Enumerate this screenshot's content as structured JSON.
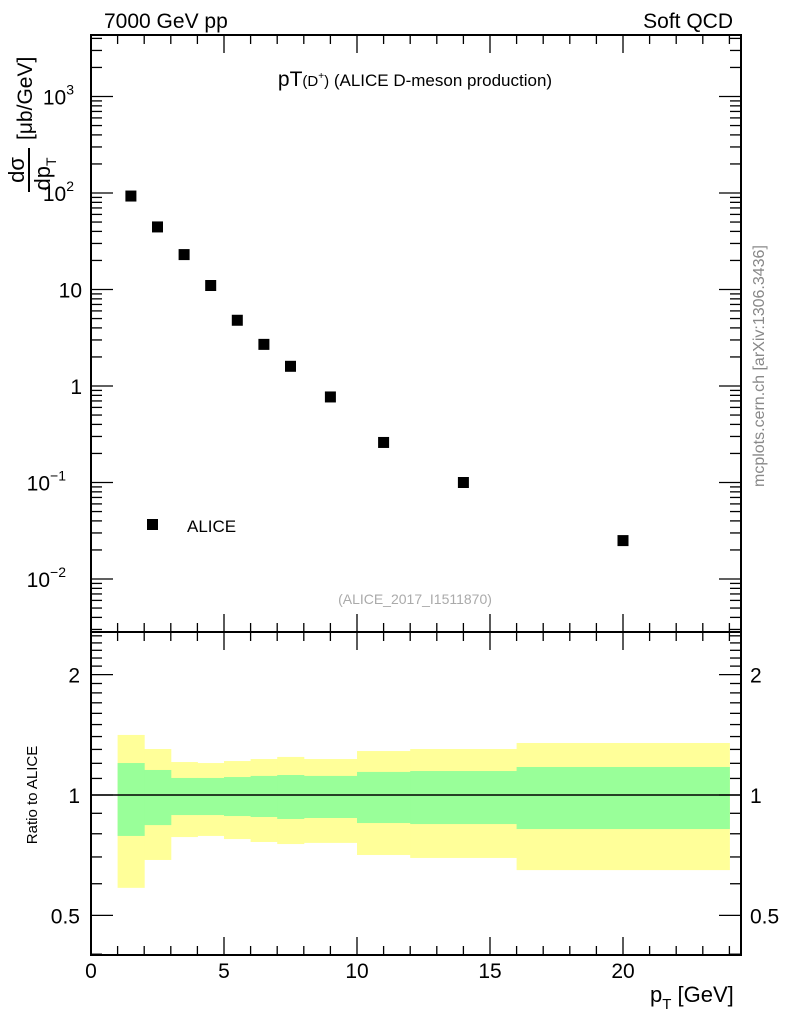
{
  "header": {
    "left": "7000 GeV pp",
    "right": "Soft QCD"
  },
  "watermark": "mcplots.cern.ch [arXiv:1306.3436]",
  "chart_data": [
    {
      "type": "scatter",
      "title_main": "pT",
      "title_sub": "(D",
      "title_sup": "+",
      "title_close": ")",
      "title_rest": " (ALICE D-meson production)",
      "ylabel_num": "dσ",
      "ylabel_den": "dp",
      "ylabel_den_sub": "T",
      "ylabel_unit": "[μb/GeV]",
      "yscale": "log",
      "ylim": [
        0.00275,
        4300
      ],
      "xlim": [
        0,
        24.4
      ],
      "y_ticks": [
        {
          "value": 0.01,
          "base": "10",
          "exp": "−2"
        },
        {
          "value": 0.1,
          "base": "10",
          "exp": "−1"
        },
        {
          "value": 1,
          "base": "1",
          "exp": ""
        },
        {
          "value": 10,
          "base": "10",
          "exp": ""
        },
        {
          "value": 100,
          "base": "10",
          "exp": "2"
        },
        {
          "value": 1000,
          "base": "10",
          "exp": "3"
        }
      ],
      "series": [
        {
          "name": "ALICE",
          "x": [
            1.5,
            2.5,
            3.5,
            4.5,
            5.5,
            6.5,
            7.5,
            9,
            11,
            14,
            20
          ],
          "y": [
            93,
            44.5,
            23,
            11,
            4.8,
            2.7,
            1.6,
            0.77,
            0.26,
            0.1,
            0.025
          ],
          "marker": "square",
          "color": "#000000"
        }
      ],
      "legend": {
        "label": "ALICE",
        "placement": "bottom-left"
      },
      "reference": "(ALICE_2017_I1511870)"
    },
    {
      "type": "area",
      "ylabel": "Ratio to ALICE",
      "xlabel_main": "p",
      "xlabel_sub": "T",
      "xlabel_unit": " [GeV]",
      "yscale": "log",
      "ylim": [
        0.4,
        2.56
      ],
      "xlim": [
        0,
        24.4
      ],
      "x_ticks": [
        0,
        5,
        10,
        15,
        20
      ],
      "y_ticks": [
        {
          "value": 0.5,
          "label": "0.5"
        },
        {
          "value": 1,
          "label": "1"
        },
        {
          "value": 2,
          "label": "2"
        }
      ],
      "bin_edges": [
        1,
        2,
        3,
        4,
        5,
        6,
        7,
        8,
        10,
        12,
        16,
        24
      ],
      "yellow_band": {
        "color": "#ffff99",
        "upper": [
          1.413,
          1.303,
          1.209,
          1.202,
          1.216,
          1.23,
          1.245,
          1.23,
          1.288,
          1.303,
          1.349
        ],
        "lower": [
          0.586,
          0.688,
          0.785,
          0.79,
          0.776,
          0.763,
          0.754,
          0.759,
          0.708,
          0.696,
          0.649
        ]
      },
      "green_band": {
        "color": "#99ff99",
        "upper": [
          1.202,
          1.155,
          1.103,
          1.103,
          1.109,
          1.116,
          1.122,
          1.116,
          1.142,
          1.148,
          1.175
        ],
        "lower": [
          0.79,
          0.841,
          0.891,
          0.891,
          0.886,
          0.881,
          0.871,
          0.876,
          0.851,
          0.846,
          0.822
        ]
      },
      "reference_line": 1
    }
  ]
}
